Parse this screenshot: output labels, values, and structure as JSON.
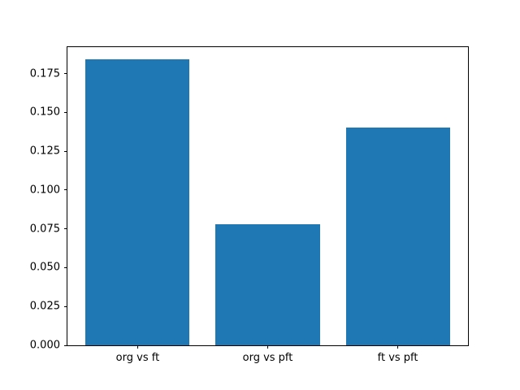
{
  "figure": {
    "background": "#ffffff"
  },
  "chart_data": {
    "type": "bar",
    "title": "",
    "xlabel": "",
    "ylabel": "",
    "categories": [
      "org vs ft",
      "org vs pft",
      "ft vs pft"
    ],
    "values": [
      0.184,
      0.078,
      0.14
    ],
    "ytick_labels": [
      "0.000",
      "0.025",
      "0.050",
      "0.075",
      "0.100",
      "0.125",
      "0.150",
      "0.175"
    ],
    "ylim": [
      0,
      0.192
    ],
    "xlim": [
      -0.54,
      2.54
    ],
    "bar_width": 0.8,
    "bar_color": "#1f77b4",
    "spine_color": "#000000",
    "grid": false,
    "legend": "none"
  }
}
